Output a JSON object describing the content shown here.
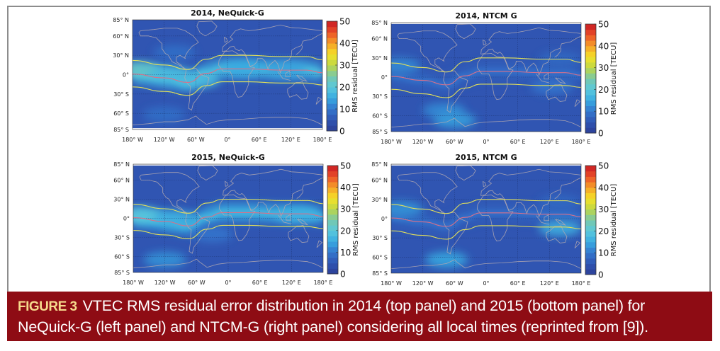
{
  "chart_data": [
    {
      "type": "heatmap",
      "title": "2014, NeQuick-G",
      "model": "NeQuick-G",
      "year": 2014,
      "xlabel": "",
      "ylabel": "",
      "xticks": [
        "180° W",
        "120° W",
        "60° W",
        "0°",
        "60° E",
        "120° E",
        "180° E"
      ],
      "yticks": [
        "85° N",
        "60° N",
        "30° N",
        "0°",
        "30° S",
        "60° S",
        "85° S"
      ],
      "xlim": [
        -180,
        180
      ],
      "ylim": [
        -85,
        85
      ],
      "grid": true,
      "colorbar": {
        "label": "RMS residual [TECU]",
        "range": [
          0,
          50
        ],
        "ticks": [
          "0",
          "10",
          "20",
          "30",
          "40",
          "50"
        ]
      },
      "baseline_rms": 5,
      "hotspots": [
        {
          "lon": -165,
          "lat": 8,
          "rms": 22
        },
        {
          "lon": -110,
          "lat": 2,
          "rms": 18
        },
        {
          "lon": -55,
          "lat": -8,
          "rms": 18
        },
        {
          "lon": 30,
          "lat": 10,
          "rms": 15
        },
        {
          "lon": 110,
          "lat": 8,
          "rms": 14
        },
        {
          "lon": -120,
          "lat": -62,
          "rms": 9
        },
        {
          "lon": -100,
          "lat": 34,
          "rms": 9
        }
      ],
      "band_rms": 16
    },
    {
      "type": "heatmap",
      "title": "2014, NTCM G",
      "model": "NTCM G",
      "year": 2014,
      "xticks": [
        "180° W",
        "120° W",
        "60° W",
        "0°",
        "60° E",
        "120° E",
        "180° E"
      ],
      "yticks": [
        "85° N",
        "60° N",
        "30° N",
        "0°",
        "30° S",
        "60° S",
        "85° S"
      ],
      "xlim": [
        -180,
        180
      ],
      "ylim": [
        -85,
        85
      ],
      "grid": true,
      "colorbar": {
        "label": "RMS residual [TECU]",
        "range": [
          0,
          50
        ],
        "ticks": [
          "0",
          "10",
          "20",
          "30",
          "40",
          "50"
        ]
      },
      "baseline_rms": 5,
      "hotspots": [
        {
          "lon": -165,
          "lat": 18,
          "rms": 12
        },
        {
          "lon": -80,
          "lat": -52,
          "rms": 12
        },
        {
          "lon": -60,
          "lat": -67,
          "rms": 14
        },
        {
          "lon": 125,
          "lat": -15,
          "rms": 10
        },
        {
          "lon": 140,
          "lat": 28,
          "rms": 8
        }
      ],
      "band_rms": 7
    },
    {
      "type": "heatmap",
      "title": "2015, NeQuick-G",
      "model": "NeQuick-G",
      "year": 2015,
      "xticks": [
        "180° W",
        "120° W",
        "60° W",
        "0°",
        "60° E",
        "120° E",
        "180° E"
      ],
      "yticks": [
        "85° N",
        "60° N",
        "30° N",
        "0°",
        "30° S",
        "60° S",
        "85° S"
      ],
      "xlim": [
        -180,
        180
      ],
      "ylim": [
        -85,
        85
      ],
      "grid": true,
      "colorbar": {
        "label": "RMS residual [TECU]",
        "range": [
          0,
          50
        ],
        "ticks": [
          "0",
          "10",
          "20",
          "30",
          "40",
          "50"
        ]
      },
      "baseline_rms": 5,
      "hotspots": [
        {
          "lon": -165,
          "lat": 5,
          "rms": 20
        },
        {
          "lon": -100,
          "lat": 0,
          "rms": 16
        },
        {
          "lon": 130,
          "lat": 5,
          "rms": 16
        },
        {
          "lon": -120,
          "lat": -65,
          "rms": 13
        },
        {
          "lon": -30,
          "lat": -25,
          "rms": 10
        }
      ],
      "band_rms": 15
    },
    {
      "type": "heatmap",
      "title": "2015, NTCM G",
      "model": "NTCM G",
      "year": 2015,
      "xticks": [
        "180° W",
        "120° W",
        "60° W",
        "0°",
        "60° E",
        "120° E",
        "180° E"
      ],
      "yticks": [
        "85° N",
        "60° N",
        "30° N",
        "0°",
        "30° S",
        "60° S",
        "85° S"
      ],
      "xlim": [
        -180,
        180
      ],
      "ylim": [
        -85,
        85
      ],
      "grid": true,
      "colorbar": {
        "label": "RMS residual [TECU]",
        "range": [
          0,
          50
        ],
        "ticks": [
          "0",
          "10",
          "20",
          "30",
          "40",
          "50"
        ]
      },
      "baseline_rms": 5,
      "hotspots": [
        {
          "lon": -160,
          "lat": 15,
          "rms": 13
        },
        {
          "lon": -75,
          "lat": -64,
          "rms": 15
        },
        {
          "lon": 140,
          "lat": -15,
          "rms": 16
        },
        {
          "lon": 140,
          "lat": 25,
          "rms": 8
        }
      ],
      "band_rms": 7
    }
  ],
  "magnetic_curves": {
    "north_crest": [
      [
        -180,
        22
      ],
      [
        -120,
        15
      ],
      [
        -75,
        8
      ],
      [
        -40,
        24
      ],
      [
        -10,
        30
      ],
      [
        40,
        30
      ],
      [
        100,
        28
      ],
      [
        150,
        28
      ],
      [
        180,
        23
      ]
    ],
    "dip_equator": [
      [
        -180,
        1
      ],
      [
        -120,
        -5
      ],
      [
        -75,
        -12
      ],
      [
        -40,
        2
      ],
      [
        -10,
        9
      ],
      [
        40,
        9
      ],
      [
        100,
        7
      ],
      [
        150,
        7
      ],
      [
        180,
        3
      ]
    ],
    "south_crest": [
      [
        -180,
        -19
      ],
      [
        -120,
        -26
      ],
      [
        -75,
        -32
      ],
      [
        -40,
        -17
      ],
      [
        -10,
        -11
      ],
      [
        40,
        -11
      ],
      [
        100,
        -13
      ],
      [
        150,
        -13
      ],
      [
        180,
        -16
      ]
    ]
  },
  "colors": {
    "crest_line": "#e2e05a",
    "equator_line": "#d9708a",
    "coastline": "#b3a8b0",
    "caption_bg": "#8e0c14",
    "caption_label": "#f6d98c"
  },
  "caption": {
    "label": "FIGURE 3",
    "line1": "VTEC RMS residual error distribution in 2014 (top panel) and 2015 (bottom panel) for",
    "line2": "NeQuick-G (left panel) and NTCM-G (right panel) considering all local times (reprinted from [9])."
  }
}
